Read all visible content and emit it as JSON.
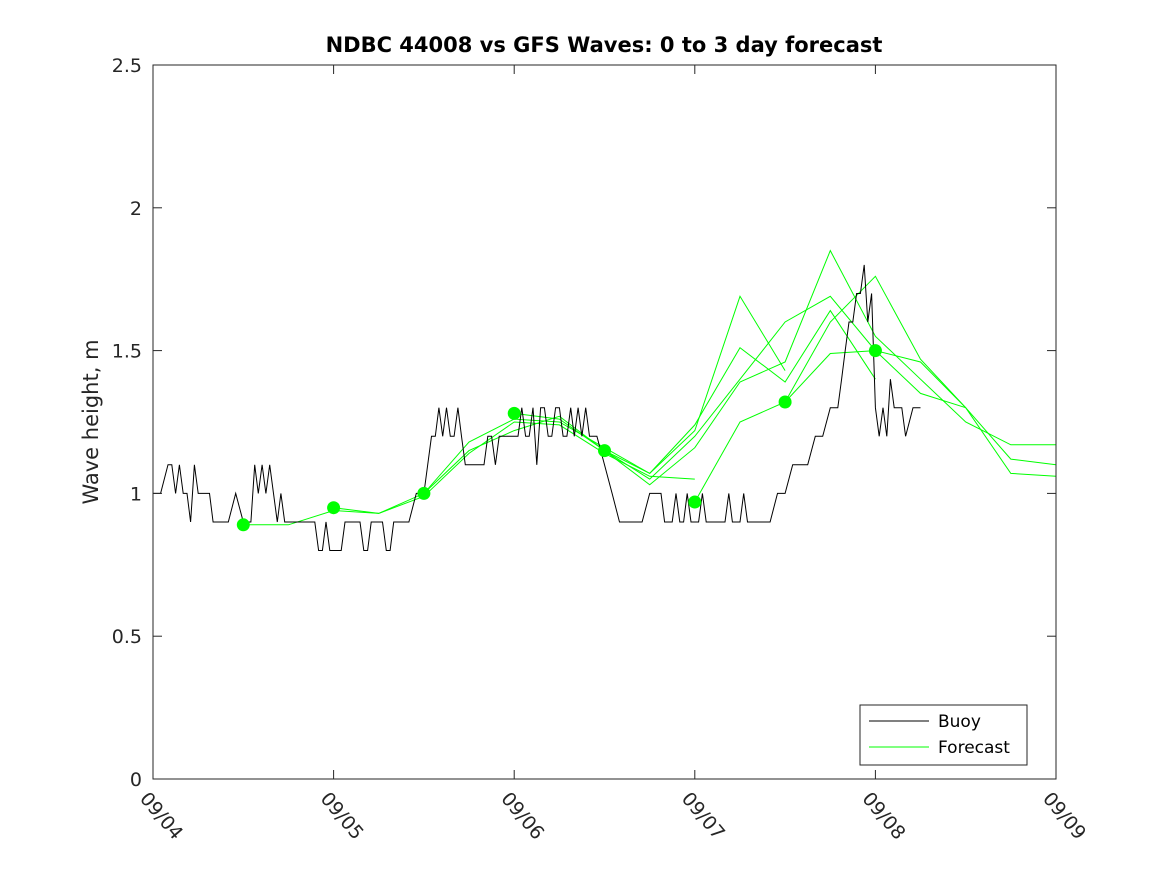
{
  "chart_data": {
    "type": "line",
    "title": "NDBC 44008 vs GFS Waves: 0 to 3 day forecast",
    "xlabel": "",
    "ylabel": "Wave height, m",
    "xlim": [
      0,
      5
    ],
    "ylim": [
      0,
      2.5
    ],
    "x_tick_values": [
      0,
      1,
      2,
      3,
      4,
      5
    ],
    "x_tick_labels": [
      "09/04",
      "09/05",
      "09/06",
      "09/07",
      "09/08",
      "09/09"
    ],
    "y_tick_values": [
      0,
      0.5,
      1,
      1.5,
      2,
      2.5
    ],
    "y_tick_labels": [
      "0",
      "0.5",
      "1",
      "1.5",
      "2",
      "2.5"
    ],
    "grid": false,
    "legend_position": "bottom-right",
    "colors": {
      "buoy": "#000000",
      "forecast": "#00ff00",
      "axes": "#262626"
    },
    "buoy": {
      "name": "Buoy",
      "x": [
        0,
        0.042,
        0.083,
        0.104,
        0.125,
        0.146,
        0.167,
        0.188,
        0.208,
        0.229,
        0.25,
        0.271,
        0.292,
        0.313,
        0.333,
        0.354,
        0.375,
        0.396,
        0.417,
        0.458,
        0.5,
        0.542,
        0.563,
        0.583,
        0.604,
        0.625,
        0.646,
        0.667,
        0.688,
        0.708,
        0.729,
        0.75,
        0.771,
        0.792,
        0.813,
        0.833,
        0.854,
        0.875,
        0.896,
        0.917,
        0.938,
        0.958,
        0.979,
        1.0,
        1.021,
        1.042,
        1.063,
        1.083,
        1.104,
        1.125,
        1.146,
        1.167,
        1.188,
        1.208,
        1.229,
        1.25,
        1.271,
        1.292,
        1.313,
        1.333,
        1.375,
        1.417,
        1.458,
        1.5,
        1.521,
        1.542,
        1.563,
        1.583,
        1.604,
        1.625,
        1.646,
        1.667,
        1.688,
        1.708,
        1.729,
        1.75,
        1.792,
        1.833,
        1.854,
        1.875,
        1.896,
        1.917,
        1.938,
        1.958,
        2.0,
        2.021,
        2.042,
        2.063,
        2.083,
        2.104,
        2.125,
        2.146,
        2.167,
        2.188,
        2.208,
        2.229,
        2.25,
        2.271,
        2.292,
        2.313,
        2.333,
        2.354,
        2.375,
        2.396,
        2.417,
        2.438,
        2.458,
        2.5,
        2.542,
        2.583,
        2.625,
        2.667,
        2.708,
        2.75,
        2.771,
        2.792,
        2.813,
        2.833,
        2.854,
        2.875,
        2.896,
        2.917,
        2.938,
        2.958,
        2.979,
        3.0,
        3.021,
        3.042,
        3.063,
        3.083,
        3.125,
        3.167,
        3.188,
        3.208,
        3.25,
        3.271,
        3.292,
        3.313,
        3.333,
        3.375,
        3.417,
        3.458,
        3.5,
        3.542,
        3.583,
        3.625,
        3.667,
        3.708,
        3.75,
        3.792,
        3.813,
        3.833,
        3.854,
        3.875,
        3.896,
        3.917,
        3.938,
        3.958,
        3.979,
        4.0,
        4.021,
        4.042,
        4.063,
        4.083,
        4.104,
        4.125,
        4.146,
        4.167,
        4.208,
        4.25
      ],
      "values": [
        1.0,
        1.0,
        1.1,
        1.1,
        1.0,
        1.1,
        1.0,
        1.0,
        0.9,
        1.1,
        1.0,
        1.0,
        1.0,
        1.0,
        0.9,
        0.9,
        0.9,
        0.9,
        0.9,
        1.0,
        0.9,
        0.9,
        1.1,
        1.0,
        1.1,
        1.0,
        1.1,
        1.0,
        0.9,
        1.0,
        0.9,
        0.9,
        0.9,
        0.9,
        0.9,
        0.9,
        0.9,
        0.9,
        0.9,
        0.8,
        0.8,
        0.9,
        0.8,
        0.8,
        0.8,
        0.8,
        0.9,
        0.9,
        0.9,
        0.9,
        0.9,
        0.8,
        0.8,
        0.9,
        0.9,
        0.9,
        0.9,
        0.8,
        0.8,
        0.9,
        0.9,
        0.9,
        1.0,
        1.0,
        1.1,
        1.2,
        1.2,
        1.3,
        1.2,
        1.3,
        1.2,
        1.2,
        1.3,
        1.2,
        1.1,
        1.1,
        1.1,
        1.1,
        1.2,
        1.2,
        1.1,
        1.2,
        1.2,
        1.2,
        1.2,
        1.2,
        1.3,
        1.2,
        1.2,
        1.3,
        1.1,
        1.3,
        1.3,
        1.2,
        1.2,
        1.3,
        1.3,
        1.2,
        1.2,
        1.3,
        1.2,
        1.3,
        1.2,
        1.3,
        1.2,
        1.2,
        1.2,
        1.1,
        1.0,
        0.9,
        0.9,
        0.9,
        0.9,
        1.0,
        1.0,
        1.0,
        1.0,
        0.9,
        0.9,
        0.9,
        1.0,
        0.9,
        0.9,
        1.0,
        0.9,
        0.9,
        0.9,
        1.0,
        0.9,
        0.9,
        0.9,
        0.9,
        1.0,
        0.9,
        0.9,
        1.0,
        0.9,
        0.9,
        0.9,
        0.9,
        0.9,
        1.0,
        1.0,
        1.1,
        1.1,
        1.1,
        1.2,
        1.2,
        1.3,
        1.3,
        1.4,
        1.5,
        1.6,
        1.6,
        1.7,
        1.7,
        1.8,
        1.6,
        1.7,
        1.3,
        1.2,
        1.3,
        1.2,
        1.4,
        1.3,
        1.3,
        1.3,
        1.2,
        1.3,
        1.3
      ]
    },
    "forecast": {
      "name": "Forecast",
      "series": [
        {
          "x": [
            0.5,
            0.75,
            1.0,
            1.25,
            1.5,
            1.75,
            2.0,
            2.25,
            2.5,
            2.75,
            3.0
          ],
          "values": [
            0.89,
            0.89,
            0.94,
            0.93,
            0.99,
            1.14,
            1.25,
            1.24,
            1.14,
            1.06,
            1.05
          ]
        },
        {
          "x": [
            1.0,
            1.25,
            1.5,
            1.75,
            2.0,
            2.25,
            2.5,
            2.75,
            3.0,
            3.25,
            3.5
          ],
          "values": [
            0.95,
            0.93,
            1.0,
            1.18,
            1.26,
            1.25,
            1.16,
            1.07,
            1.22,
            1.69,
            1.43
          ]
        },
        {
          "x": [
            1.5,
            1.75,
            2.0,
            2.25,
            2.5,
            2.75,
            3.0,
            3.25,
            3.5,
            3.75,
            4.0
          ],
          "values": [
            1.0,
            1.15,
            1.22,
            1.27,
            1.15,
            1.07,
            1.24,
            1.51,
            1.39,
            1.64,
            1.4
          ]
        },
        {
          "x": [
            2.0,
            2.25,
            2.5,
            2.75,
            3.0,
            3.25,
            3.5,
            3.75,
            4.0,
            4.25,
            4.5
          ],
          "values": [
            1.28,
            1.26,
            1.15,
            1.05,
            1.2,
            1.4,
            1.6,
            1.69,
            1.5,
            1.35,
            1.3
          ]
        },
        {
          "x": [
            2.5,
            2.75,
            3.0,
            3.25,
            3.5,
            3.75,
            4.0,
            4.25,
            4.5,
            4.75,
            5.0
          ],
          "values": [
            1.15,
            1.03,
            1.16,
            1.39,
            1.46,
            1.85,
            1.55,
            1.4,
            1.25,
            1.17,
            1.17
          ]
        },
        {
          "x": [
            3.0,
            3.25,
            3.5,
            3.75,
            4.0,
            4.25,
            4.5,
            4.75,
            5.0
          ],
          "values": [
            0.97,
            1.25,
            1.32,
            1.6,
            1.76,
            1.47,
            1.3,
            1.12,
            1.1
          ]
        },
        {
          "x": [
            3.5,
            3.75,
            4.0,
            4.25,
            4.5,
            4.75,
            5.0
          ],
          "values": [
            1.32,
            1.49,
            1.5,
            1.46,
            1.3,
            1.07,
            1.06
          ]
        }
      ],
      "analysis_points": {
        "x": [
          0.5,
          1.0,
          1.5,
          2.0,
          2.5,
          3.0,
          3.5,
          4.0
        ],
        "values": [
          0.89,
          0.95,
          1.0,
          1.28,
          1.15,
          0.97,
          1.32,
          1.5
        ]
      }
    },
    "legend": [
      "Buoy",
      "Forecast"
    ]
  }
}
